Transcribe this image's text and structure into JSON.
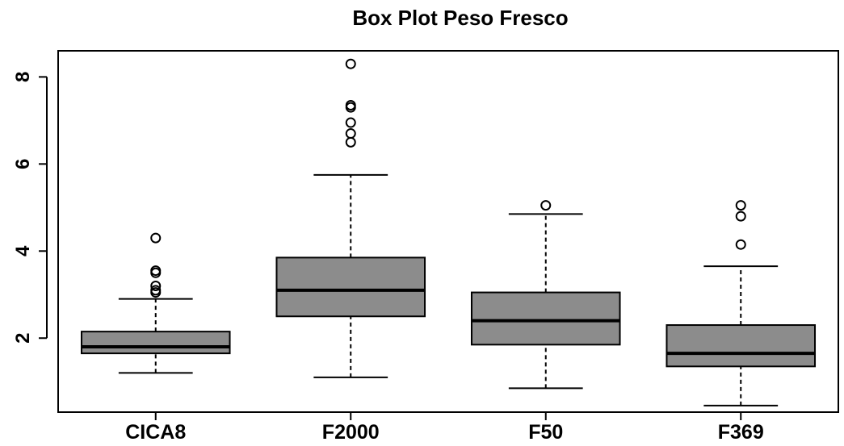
{
  "chart_data": {
    "type": "box",
    "title": "Box Plot Peso Fresco",
    "xlabel": "",
    "ylabel": "",
    "categories": [
      "CICA8",
      "F2000",
      "F50",
      "F369"
    ],
    "yticks": [
      2,
      4,
      6,
      8
    ],
    "ylim": [
      0.3,
      8.6
    ],
    "grid": false,
    "box_color": "#8c8c8c",
    "boxes": [
      {
        "min": 1.2,
        "q1": 1.65,
        "median": 1.8,
        "q3": 2.15,
        "max": 2.9,
        "outliers": [
          3.05,
          3.1,
          3.2,
          3.5,
          3.55,
          4.3
        ]
      },
      {
        "min": 1.1,
        "q1": 2.5,
        "median": 3.1,
        "q3": 3.85,
        "max": 5.75,
        "outliers": [
          6.5,
          6.7,
          6.95,
          7.3,
          7.35,
          8.3
        ]
      },
      {
        "min": 0.85,
        "q1": 1.85,
        "median": 2.4,
        "q3": 3.05,
        "max": 4.85,
        "outliers": [
          5.05
        ]
      },
      {
        "min": 0.45,
        "q1": 1.35,
        "median": 1.65,
        "q3": 2.3,
        "max": 3.65,
        "outliers": [
          4.15,
          4.8,
          5.05
        ]
      }
    ]
  }
}
